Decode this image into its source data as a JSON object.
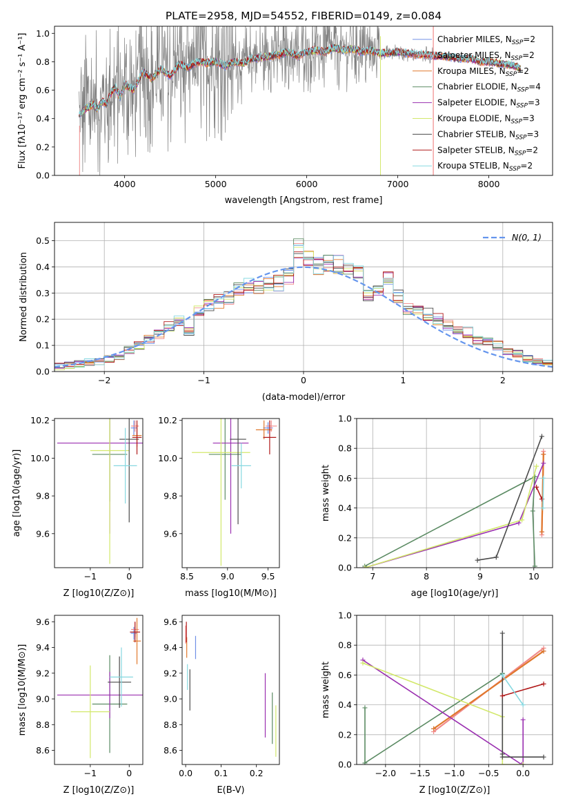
{
  "colors": {
    "Chabrier MILES": "#6f8fe6",
    "Salpeter MILES": "#f08a8a",
    "Kroupa MILES": "#e0782c",
    "Chabrier ELODIE": "#5a8a62",
    "Salpeter ELODIE": "#9a2fb0",
    "Kroupa ELODIE": "#d2e86a",
    "Chabrier STELIB": "#4a4a4a",
    "Salpeter STELIB": "#b01818",
    "Kroupa STELIB": "#86d8e0",
    "data": "#808080",
    "gaussian": "#6495ed"
  },
  "legend_entries": [
    {
      "base": "Chabrier MILES, N",
      "sub": "SSP",
      "tail": "=2",
      "series": "Chabrier MILES"
    },
    {
      "base": "Salpeter MILES, N",
      "sub": "SSP",
      "tail": "=2",
      "series": "Salpeter MILES"
    },
    {
      "base": "Kroupa MILES, N",
      "sub": "SSP",
      "tail": "=2",
      "series": "Kroupa MILES"
    },
    {
      "base": "Chabrier ELODIE, N",
      "sub": "SSP",
      "tail": "=4",
      "series": "Chabrier ELODIE"
    },
    {
      "base": "Salpeter ELODIE, N",
      "sub": "SSP",
      "tail": "=3",
      "series": "Salpeter ELODIE"
    },
    {
      "base": "Kroupa ELODIE, N",
      "sub": "SSP",
      "tail": "=3",
      "series": "Kroupa ELODIE"
    },
    {
      "base": "Chabrier STELIB, N",
      "sub": "SSP",
      "tail": "=3",
      "series": "Chabrier STELIB"
    },
    {
      "base": "Salpeter STELIB, N",
      "sub": "SSP",
      "tail": "=2",
      "series": "Salpeter STELIB"
    },
    {
      "base": "Kroupa STELIB, N",
      "sub": "SSP",
      "tail": "=2",
      "series": "Kroupa STELIB"
    }
  ],
  "chart_data": [
    {
      "id": "spectrum",
      "type": "line",
      "title": "PLATE=2958, MJD=54552, FIBERID=0149, z=0.084",
      "xlabel": "wavelength [Angstrom, rest frame]",
      "ylabel": "Flux [fλ10⁻¹⁷ erg cm⁻² s⁻¹ A⁻¹]",
      "xlim": [
        3230,
        8700
      ],
      "ylim": [
        0,
        1.05
      ],
      "xticks": [
        4000,
        5000,
        6000,
        7000,
        8000
      ],
      "yticks": [
        0.0,
        0.2,
        0.4,
        0.6,
        0.8,
        1.0
      ],
      "data_range": [
        3500,
        8350
      ],
      "model_continuum": {
        "x": [
          3500,
          3550,
          3600,
          3650,
          3700,
          3750,
          3800,
          3850,
          3900,
          3950,
          4000,
          4100,
          4200,
          4300,
          4400,
          4500,
          4600,
          4700,
          4800,
          4900,
          5000,
          5100,
          5200,
          5300,
          5400,
          5500,
          5600,
          5700,
          5800,
          5900,
          6000,
          6100,
          6200,
          6300,
          6400,
          6500,
          6600,
          6700,
          6800,
          6900,
          7000,
          7100,
          7200,
          7300,
          7400,
          7500,
          7600,
          7700,
          7800,
          7900,
          8000,
          8100,
          8200,
          8300,
          8350
        ],
        "y": [
          0.42,
          0.46,
          0.48,
          0.5,
          0.47,
          0.52,
          0.5,
          0.58,
          0.62,
          0.55,
          0.64,
          0.6,
          0.73,
          0.68,
          0.75,
          0.7,
          0.78,
          0.76,
          0.8,
          0.79,
          0.8,
          0.77,
          0.8,
          0.79,
          0.82,
          0.83,
          0.84,
          0.85,
          0.87,
          0.84,
          0.87,
          0.88,
          0.87,
          0.9,
          0.88,
          0.89,
          0.87,
          0.88,
          0.86,
          0.86,
          0.87,
          0.86,
          0.85,
          0.85,
          0.84,
          0.84,
          0.83,
          0.82,
          0.82,
          0.8,
          0.8,
          0.79,
          0.78,
          0.77,
          0.75
        ]
      }
    },
    {
      "id": "residuals",
      "type": "line",
      "xlabel": "(data-model)/error",
      "ylabel": "Normed distribution",
      "xlim": [
        -2.5,
        2.5
      ],
      "ylim": [
        0,
        0.57
      ],
      "xticks": [
        -2,
        -1,
        0,
        1,
        2
      ],
      "yticks": [
        0.0,
        0.1,
        0.2,
        0.3,
        0.4,
        0.5
      ],
      "legend": "N(0, 1)",
      "bin_width": 0.1,
      "bins_x": [
        -2.5,
        -2.4,
        -2.3,
        -2.2,
        -2.1,
        -2.0,
        -1.9,
        -1.8,
        -1.7,
        -1.6,
        -1.5,
        -1.4,
        -1.3,
        -1.2,
        -1.1,
        -1.0,
        -0.9,
        -0.8,
        -0.7,
        -0.6,
        -0.5,
        -0.4,
        -0.3,
        -0.2,
        -0.1,
        0.0,
        0.1,
        0.2,
        0.3,
        0.4,
        0.5,
        0.6,
        0.7,
        0.8,
        0.9,
        1.0,
        1.1,
        1.2,
        1.3,
        1.4,
        1.5,
        1.6,
        1.7,
        1.8,
        1.9,
        2.0,
        2.1,
        2.2,
        2.3,
        2.4
      ],
      "hist_base": [
        0.02,
        0.025,
        0.03,
        0.035,
        0.04,
        0.05,
        0.06,
        0.08,
        0.1,
        0.12,
        0.14,
        0.17,
        0.19,
        0.16,
        0.23,
        0.26,
        0.27,
        0.28,
        0.31,
        0.33,
        0.32,
        0.33,
        0.34,
        0.36,
        0.47,
        0.43,
        0.4,
        0.42,
        0.41,
        0.39,
        0.37,
        0.3,
        0.32,
        0.35,
        0.29,
        0.24,
        0.23,
        0.22,
        0.2,
        0.18,
        0.16,
        0.15,
        0.12,
        0.11,
        0.1,
        0.08,
        0.07,
        0.05,
        0.04,
        0.03
      ]
    },
    {
      "id": "age-vs-Z",
      "type": "scatter",
      "xlabel": "Z [log10(Z/Z⊙)]",
      "ylabel": "age [log10(age/yr)]",
      "xlim": [
        -1.92,
        0.35
      ],
      "ylim": [
        9.42,
        10.21
      ],
      "xticks": [
        -1,
        0
      ],
      "yticks": [
        9.6,
        9.8,
        10.0,
        10.2
      ],
      "points": [
        {
          "series": "Chabrier MILES",
          "x": 0.12,
          "xerr": 0.08,
          "y": 10.16,
          "yerr": 0.04
        },
        {
          "series": "Salpeter MILES",
          "x": 0.15,
          "xerr": 0.1,
          "y": 10.17,
          "yerr": 0.03
        },
        {
          "series": "Kroupa MILES",
          "x": 0.2,
          "xerr": 0.12,
          "y": 10.12,
          "yerr": 0.06
        },
        {
          "series": "Chabrier ELODIE",
          "x": -0.5,
          "xerr": 0.45,
          "y": 10.02,
          "yerr": 0.25
        },
        {
          "series": "Salpeter ELODIE",
          "x": -0.5,
          "xerr": 1.35,
          "y": 10.08,
          "yerr": 0.48
        },
        {
          "series": "Kroupa ELODIE",
          "x": -0.5,
          "xerr": 0.5,
          "y": 10.04,
          "yerr": 0.6
        },
        {
          "series": "Chabrier STELIB",
          "x": 0.0,
          "xerr": 0.25,
          "y": 10.1,
          "yerr": 0.44
        },
        {
          "series": "Salpeter STELIB",
          "x": 0.2,
          "xerr": 0.12,
          "y": 10.11,
          "yerr": 0.09
        },
        {
          "series": "Kroupa STELIB",
          "x": -0.1,
          "xerr": 0.3,
          "y": 9.96,
          "yerr": 0.2
        }
      ]
    },
    {
      "id": "age-vs-mass",
      "type": "scatter",
      "xlabel": "mass [log10(M/M⊙)]",
      "ylabel": "",
      "xlim": [
        8.44,
        9.64
      ],
      "ylim": [
        9.42,
        10.21
      ],
      "xticks": [
        8.5,
        9.0,
        9.5
      ],
      "yticks": [
        9.6,
        9.8,
        10.0,
        10.2
      ],
      "points": [
        {
          "series": "Chabrier MILES",
          "x": 9.5,
          "xerr": 0.06,
          "y": 10.16,
          "yerr": 0.03
        },
        {
          "series": "Salpeter MILES",
          "x": 9.54,
          "xerr": 0.07,
          "y": 10.17,
          "yerr": 0.03
        },
        {
          "series": "Kroupa MILES",
          "x": 9.45,
          "xerr": 0.1,
          "y": 10.15,
          "yerr": 0.05
        },
        {
          "series": "Chabrier ELODIE",
          "x": 8.97,
          "xerr": 0.2,
          "y": 10.02,
          "yerr": 0.24
        },
        {
          "series": "Salpeter ELODIE",
          "x": 9.04,
          "xerr": 0.22,
          "y": 10.08,
          "yerr": 0.48
        },
        {
          "series": "Kroupa ELODIE",
          "x": 8.92,
          "xerr": 0.36,
          "y": 10.03,
          "yerr": 0.6
        },
        {
          "series": "Chabrier STELIB",
          "x": 9.13,
          "xerr": 0.1,
          "y": 10.1,
          "yerr": 0.45
        },
        {
          "series": "Salpeter STELIB",
          "x": 9.52,
          "xerr": 0.08,
          "y": 10.11,
          "yerr": 0.09
        },
        {
          "series": "Kroupa STELIB",
          "x": 9.17,
          "xerr": 0.12,
          "y": 9.96,
          "yerr": 0.12
        }
      ]
    },
    {
      "id": "weight-vs-age",
      "type": "line",
      "xlabel": "age [log10(age/yr)]",
      "ylabel": "mass weight",
      "xlim": [
        6.7,
        10.35
      ],
      "ylim": [
        0,
        1
      ],
      "xticks": [
        7,
        8,
        9,
        10
      ],
      "yticks": [
        0.0,
        0.2,
        0.4,
        0.6,
        0.8,
        1.0
      ],
      "series": [
        {
          "name": "Chabrier MILES",
          "x": [
            10.15,
            10.18
          ],
          "y": [
            0.24,
            0.76
          ]
        },
        {
          "name": "Salpeter MILES",
          "x": [
            10.15,
            10.18
          ],
          "y": [
            0.22,
            0.78
          ]
        },
        {
          "name": "Kroupa MILES",
          "x": [
            10.15,
            10.18
          ],
          "y": [
            0.24,
            0.76
          ]
        },
        {
          "name": "Chabrier ELODIE",
          "x": [
            6.85,
            10.02,
            9.98,
            10.02
          ],
          "y": [
            0.01,
            0.61,
            0.38,
            0.01
          ]
        },
        {
          "name": "Salpeter ELODIE",
          "x": [
            6.85,
            9.72,
            10.18
          ],
          "y": [
            0.0,
            0.3,
            0.7
          ]
        },
        {
          "name": "Kroupa ELODIE",
          "x": [
            6.85,
            9.78,
            10.05
          ],
          "y": [
            0.0,
            0.32,
            0.68
          ]
        },
        {
          "name": "Chabrier STELIB",
          "x": [
            8.95,
            9.3,
            10.15
          ],
          "y": [
            0.05,
            0.07,
            0.88
          ]
        },
        {
          "name": "Salpeter STELIB",
          "x": [
            10.05,
            10.15
          ],
          "y": [
            0.54,
            0.46
          ]
        },
        {
          "name": "Kroupa STELIB",
          "x": [
            10.17,
            10.18
          ],
          "y": [
            0.4,
            0.6
          ]
        }
      ]
    },
    {
      "id": "mass-vs-Z",
      "type": "scatter",
      "xlabel": "Z [log10(Z/Z⊙)]",
      "ylabel": "mass [log10(M/M⊙)]",
      "xlim": [
        -1.92,
        0.35
      ],
      "ylim": [
        8.49,
        9.65
      ],
      "xticks": [
        -1,
        0
      ],
      "yticks": [
        8.6,
        8.8,
        9.0,
        9.2,
        9.4,
        9.6
      ],
      "points": [
        {
          "series": "Chabrier MILES",
          "x": 0.12,
          "xerr": 0.08,
          "y": 9.51,
          "yerr": 0.05
        },
        {
          "series": "Salpeter MILES",
          "x": 0.15,
          "xerr": 0.1,
          "y": 9.54,
          "yerr": 0.06
        },
        {
          "series": "Kroupa MILES",
          "x": 0.2,
          "xerr": 0.1,
          "y": 9.45,
          "yerr": 0.18
        },
        {
          "series": "Chabrier ELODIE",
          "x": -0.5,
          "xerr": 0.45,
          "y": 8.96,
          "yerr": 0.38
        },
        {
          "series": "Salpeter ELODIE",
          "x": -0.5,
          "xerr": 1.35,
          "y": 9.03,
          "yerr": 0.18
        },
        {
          "series": "Kroupa ELODIE",
          "x": -1.0,
          "xerr": 0.5,
          "y": 8.9,
          "yerr": 0.36
        },
        {
          "series": "Chabrier STELIB",
          "x": -0.25,
          "xerr": 0.3,
          "y": 9.13,
          "yerr": 0.2
        },
        {
          "series": "Salpeter STELIB",
          "x": 0.15,
          "xerr": 0.13,
          "y": 9.52,
          "yerr": 0.08
        },
        {
          "series": "Kroupa STELIB",
          "x": -0.2,
          "xerr": 0.3,
          "y": 9.17,
          "yerr": 0.23
        }
      ]
    },
    {
      "id": "mass-vs-EBV",
      "type": "scatter",
      "xlabel": "E(B-V)",
      "ylabel": "",
      "xlim": [
        -0.01,
        0.265
      ],
      "ylim": [
        8.49,
        9.65
      ],
      "xticks": [
        0.0,
        0.1,
        0.2
      ],
      "yticks": [
        8.6,
        8.8,
        9.0,
        9.2,
        9.4,
        9.6
      ],
      "points": [
        {
          "series": "Chabrier MILES",
          "x": 0.028,
          "xerr": 0,
          "y": 9.4,
          "yerr": 0.09
        },
        {
          "series": "Salpeter MILES",
          "x": 0.0,
          "xerr": 0,
          "y": 9.5,
          "yerr": 0.07
        },
        {
          "series": "Kroupa MILES",
          "x": 0.003,
          "xerr": 0,
          "y": 9.4,
          "yerr": 0.08
        },
        {
          "series": "Chabrier ELODIE",
          "x": 0.245,
          "xerr": 0,
          "y": 8.85,
          "yerr": 0.2
        },
        {
          "series": "Salpeter ELODIE",
          "x": 0.225,
          "xerr": 0,
          "y": 8.95,
          "yerr": 0.25
        },
        {
          "series": "Kroupa ELODIE",
          "x": 0.255,
          "xerr": 0,
          "y": 8.75,
          "yerr": 0.2
        },
        {
          "series": "Chabrier STELIB",
          "x": 0.012,
          "xerr": 0,
          "y": 9.07,
          "yerr": 0.16
        },
        {
          "series": "Salpeter STELIB",
          "x": 0.002,
          "xerr": 0,
          "y": 9.52,
          "yerr": 0.08
        },
        {
          "series": "Kroupa STELIB",
          "x": 0.005,
          "xerr": 0,
          "y": 9.17,
          "yerr": 0.1
        }
      ]
    },
    {
      "id": "weight-vs-Z",
      "type": "line",
      "xlabel": "Z [log10(Z/Z⊙)]",
      "ylabel": "mass weight",
      "xlim": [
        -2.42,
        0.43
      ],
      "ylim": [
        0,
        1
      ],
      "xticks": [
        -2.0,
        -1.5,
        -1.0,
        -0.5,
        0.0
      ],
      "yticks": [
        0.0,
        0.2,
        0.4,
        0.6,
        0.8,
        1.0
      ],
      "series": [
        {
          "name": "Chabrier MILES",
          "x": [
            -1.3,
            0.3
          ],
          "y": [
            0.24,
            0.76
          ]
        },
        {
          "name": "Salpeter MILES",
          "x": [
            -1.3,
            0.3
          ],
          "y": [
            0.22,
            0.78
          ]
        },
        {
          "name": "Kroupa MILES",
          "x": [
            -1.3,
            0.3
          ],
          "y": [
            0.24,
            0.76
          ]
        },
        {
          "name": "Chabrier ELODIE",
          "x": [
            -2.3,
            -2.3,
            -0.3,
            -0.3
          ],
          "y": [
            0.38,
            0.01,
            0.61,
            0.61
          ]
        },
        {
          "name": "Salpeter ELODIE",
          "x": [
            -2.33,
            -0.02,
            0.0,
            0.0
          ],
          "y": [
            0.7,
            0.0,
            0.0,
            0.3
          ]
        },
        {
          "name": "Kroupa ELODIE",
          "x": [
            -2.33,
            -0.3,
            -0.3,
            0.0
          ],
          "y": [
            0.68,
            0.32,
            0.0,
            0.0
          ]
        },
        {
          "name": "Chabrier STELIB",
          "x": [
            -0.3,
            -0.3,
            -0.3,
            0.3
          ],
          "y": [
            0.88,
            0.07,
            0.05,
            0.05
          ]
        },
        {
          "name": "Salpeter STELIB",
          "x": [
            -0.3,
            0.3
          ],
          "y": [
            0.46,
            0.54
          ]
        },
        {
          "name": "Kroupa STELIB",
          "x": [
            -0.3,
            0.0
          ],
          "y": [
            0.6,
            0.4
          ]
        }
      ]
    }
  ]
}
